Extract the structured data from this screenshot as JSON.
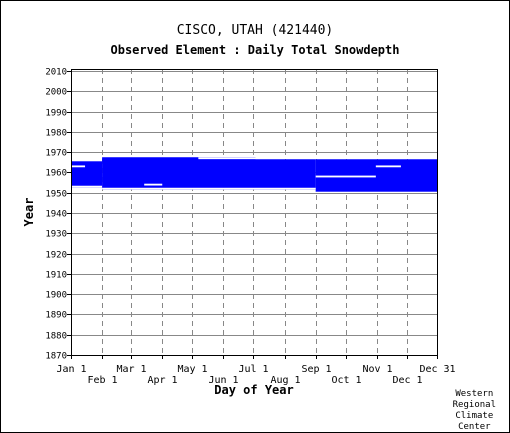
{
  "title": "CISCO, UTAH   (421440)",
  "subtitle": "Observed Element : Daily Total Snowdepth",
  "credit": [
    "Western",
    "Regional",
    "Climate",
    "Center"
  ],
  "colors": {
    "data": "#0000ff",
    "grid": "#888888",
    "axis": "#000000"
  },
  "chart_data": {
    "type": "heatmap",
    "title": "Observed Element : Daily Total Snowdepth",
    "xlabel": "Day of Year",
    "ylabel": "Year",
    "xlim": [
      1,
      366
    ],
    "ylim": [
      1870,
      2011
    ],
    "x_ticks_upper": [
      {
        "label": "Jan 1",
        "day": 1
      },
      {
        "label": "Mar 1",
        "day": 61
      },
      {
        "label": "May 1",
        "day": 122
      },
      {
        "label": "Jul 1",
        "day": 183
      },
      {
        "label": "Sep 1",
        "day": 245
      },
      {
        "label": "Nov 1",
        "day": 306
      },
      {
        "label": "Dec 31",
        "day": 366
      }
    ],
    "x_ticks_lower": [
      {
        "label": "Feb 1",
        "day": 32
      },
      {
        "label": "Apr 1",
        "day": 92
      },
      {
        "label": "Jun 1",
        "day": 153
      },
      {
        "label": "Aug 1",
        "day": 214
      },
      {
        "label": "Oct 1",
        "day": 275
      },
      {
        "label": "Dec 1",
        "day": 336
      }
    ],
    "y_ticks": [
      1870,
      1880,
      1890,
      1900,
      1910,
      1920,
      1930,
      1940,
      1950,
      1960,
      1970,
      1980,
      1990,
      2000,
      2010
    ],
    "grid": true,
    "observed_blocks": [
      {
        "day_start": 1,
        "day_end": 32,
        "year_start": 1953,
        "year_end": 1965
      },
      {
        "day_start": 32,
        "day_end": 185,
        "year_start": 1952,
        "year_end": 1967
      },
      {
        "day_start": 185,
        "day_end": 245,
        "year_start": 1952,
        "year_end": 1966
      },
      {
        "day_start": 245,
        "day_end": 366,
        "year_start": 1951,
        "year_end": 1966
      }
    ],
    "missing_segments": [
      {
        "day_start": 128,
        "day_end": 185,
        "year": 1967
      },
      {
        "day_start": 1,
        "day_end": 15,
        "year": 1963
      },
      {
        "day_start": 305,
        "day_end": 330,
        "year": 1963
      },
      {
        "day_start": 245,
        "day_end": 305,
        "year": 1958
      },
      {
        "day_start": 74,
        "day_end": 92,
        "year": 1954
      },
      {
        "day_start": 1,
        "day_end": 32,
        "year": 1953
      },
      {
        "day_start": 32,
        "day_end": 245,
        "year": 1952
      }
    ]
  }
}
